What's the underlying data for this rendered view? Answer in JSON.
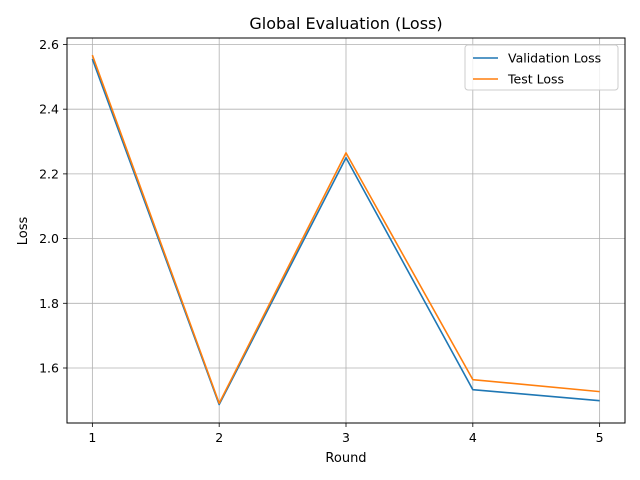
{
  "chart_data": {
    "type": "line",
    "title": "Global Evaluation (Loss)",
    "xlabel": "Round",
    "ylabel": "Loss",
    "x": [
      1,
      2,
      3,
      4,
      5
    ],
    "xticks": [
      "1",
      "2",
      "3",
      "4",
      "5"
    ],
    "yticks": [
      "1.6",
      "1.8",
      "2.0",
      "2.2",
      "2.4",
      "2.6"
    ],
    "xlim": [
      0.8,
      5.2
    ],
    "ylim": [
      1.43,
      2.62
    ],
    "grid": true,
    "legend_position": "top-right",
    "series": [
      {
        "name": "Validation Loss",
        "color": "#1f77b4",
        "values": [
          2.555,
          1.487,
          2.25,
          1.533,
          1.499
        ]
      },
      {
        "name": "Test Loss",
        "color": "#ff7f0e",
        "values": [
          2.567,
          1.491,
          2.265,
          1.564,
          1.527
        ]
      }
    ]
  }
}
